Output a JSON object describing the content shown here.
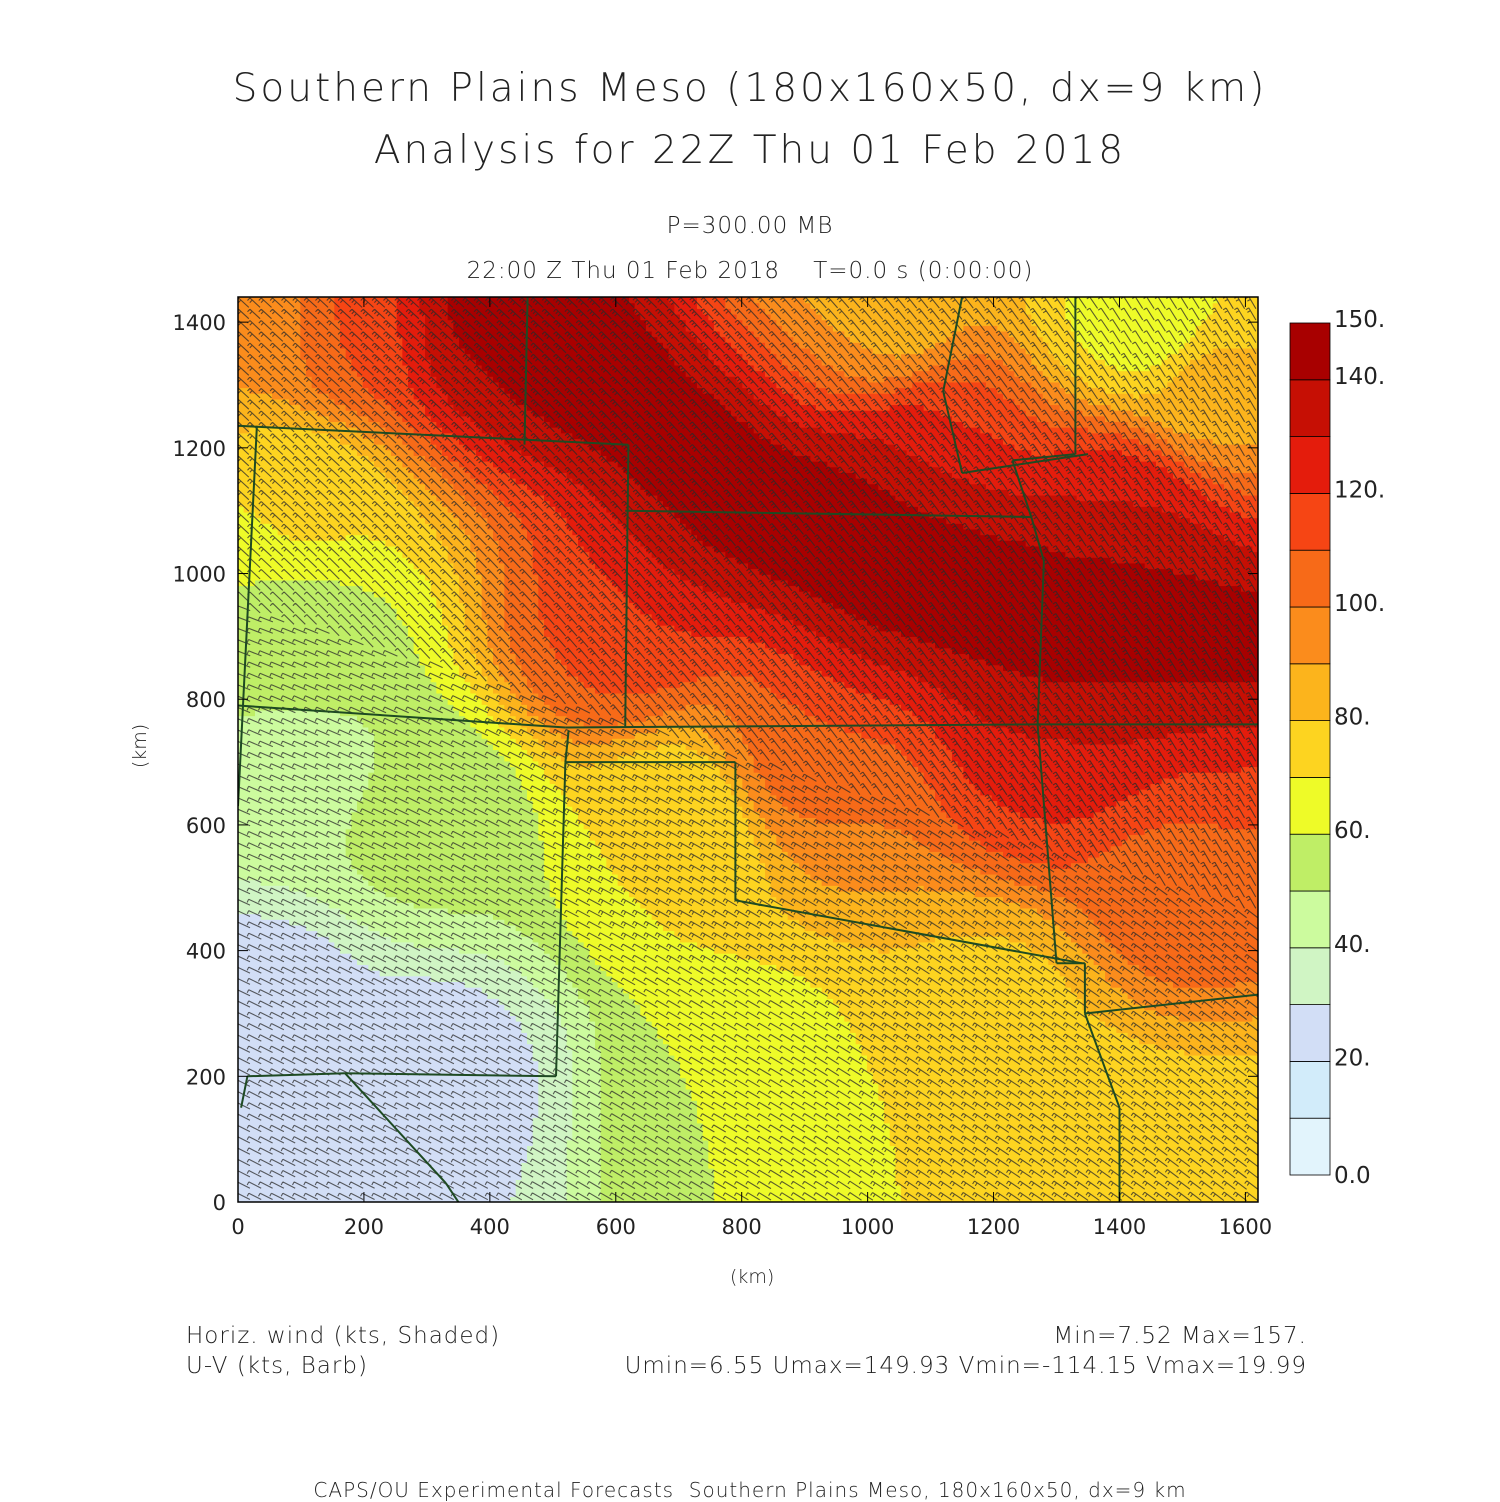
{
  "header": {
    "title_line1": "Southern Plains Meso (180x160x50, dx=9 km)",
    "title_line2": "Analysis for 22Z Thu 01 Feb 2018",
    "level": "P=300.00 MB",
    "valid_time": "22:00 Z Thu 01 Feb 2018    T=0.0 s (0:00:00)"
  },
  "footer": {
    "field1": "Horiz. wind (kts, Shaded)",
    "field2": "U-V (kts, Barb)",
    "stats1": "Min=7.52 Max=157.",
    "stats2": "Umin=6.55 Umax=149.93 Vmin=-114.15 Vmax=19.99",
    "credit": "CAPS/OU Experimental Forecasts  Southern Plains Meso, 180x160x50, dx=9 km"
  },
  "chart_data": {
    "type": "heatmap",
    "xlabel": "(km)",
    "ylabel": "(km)",
    "xlim": [
      0,
      1620
    ],
    "ylim": [
      0,
      1440
    ],
    "xticks": [
      "0",
      "200",
      "400",
      "600",
      "800",
      "1000",
      "1200",
      "1400",
      "1600"
    ],
    "yticks": [
      "0",
      "200",
      "400",
      "600",
      "800",
      "1000",
      "1200",
      "1400"
    ],
    "xtick_values": [
      0,
      200,
      400,
      600,
      800,
      1000,
      1200,
      1400,
      1600
    ],
    "ytick_values": [
      0,
      200,
      400,
      600,
      800,
      1000,
      1200,
      1400
    ],
    "colorbar": {
      "levels": [
        0,
        10,
        20,
        30,
        40,
        50,
        60,
        70,
        80,
        90,
        100,
        110,
        120,
        130,
        140,
        150
      ],
      "labels": [
        "0.0",
        "20.",
        "40.",
        "60.",
        "80.",
        "100.",
        "120.",
        "140.",
        "150."
      ],
      "label_values": [
        0,
        20,
        40,
        60,
        80,
        100,
        120,
        140,
        150
      ],
      "colors": [
        "#e2f4fc",
        "#d2ecfa",
        "#d2def6",
        "#d0f5c4",
        "#ccfb9e",
        "#bfee66",
        "#eefb28",
        "#fdd420",
        "#fcb41c",
        "#fb8c1c",
        "#f76a18",
        "#f64514",
        "#e41c0c",
        "#c60f04",
        "#a80000"
      ],
      "over_color": "#ffffff"
    },
    "field": {
      "name": "Horiz. wind",
      "units": "kts",
      "min": 7.52,
      "max": 157,
      "jet_axis_km": [
        [
          460,
          1440
        ],
        [
          600,
          1300
        ],
        [
          800,
          1130
        ],
        [
          1050,
          1000
        ],
        [
          1300,
          930
        ],
        [
          1620,
          900
        ]
      ],
      "samples": [
        {
          "x": 0,
          "y": 1400,
          "v": 90
        },
        {
          "x": 200,
          "y": 1400,
          "v": 105
        },
        {
          "x": 400,
          "y": 1400,
          "v": 130
        },
        {
          "x": 1000,
          "y": 1400,
          "v": 80
        },
        {
          "x": 1450,
          "y": 1400,
          "v": 65
        },
        {
          "x": 1550,
          "y": 1300,
          "v": 80
        },
        {
          "x": 100,
          "y": 1100,
          "v": 70
        },
        {
          "x": 100,
          "y": 900,
          "v": 55
        },
        {
          "x": 100,
          "y": 700,
          "v": 48
        },
        {
          "x": 300,
          "y": 600,
          "v": 52
        },
        {
          "x": 50,
          "y": 300,
          "v": 25
        },
        {
          "x": 300,
          "y": 200,
          "v": 25
        },
        {
          "x": 150,
          "y": 50,
          "v": 25
        },
        {
          "x": 700,
          "y": 600,
          "v": 70
        },
        {
          "x": 900,
          "y": 700,
          "v": 100
        },
        {
          "x": 1300,
          "y": 700,
          "v": 118
        },
        {
          "x": 1500,
          "y": 500,
          "v": 105
        },
        {
          "x": 1200,
          "y": 300,
          "v": 78
        },
        {
          "x": 800,
          "y": 150,
          "v": 60
        },
        {
          "x": 1300,
          "y": 100,
          "v": 72
        },
        {
          "x": 1550,
          "y": 50,
          "v": 75
        },
        {
          "x": 1100,
          "y": 1200,
          "v": 112
        },
        {
          "x": 1400,
          "y": 1100,
          "v": 118
        },
        {
          "x": 600,
          "y": 900,
          "v": 110
        }
      ]
    },
    "barbs": {
      "name": "U-V",
      "units": "kts",
      "umin": 6.55,
      "umax": 149.93,
      "vmin": -114.15,
      "vmax": 19.99
    }
  }
}
